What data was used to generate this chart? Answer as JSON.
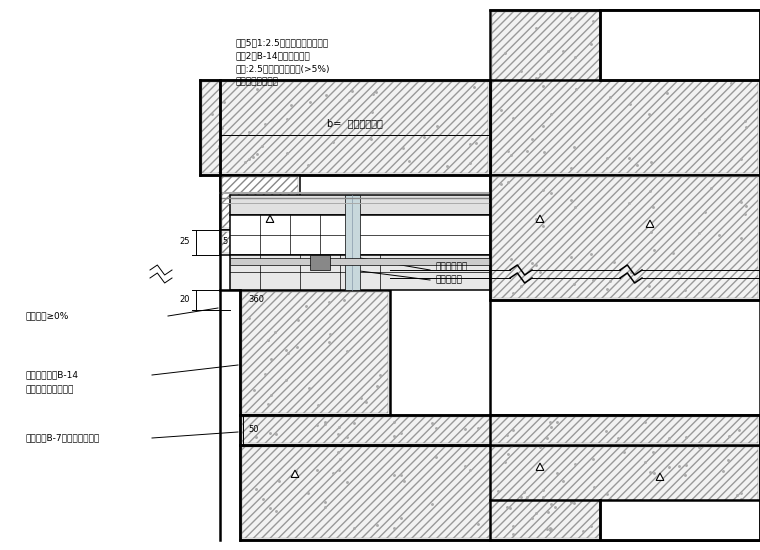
{
  "bg_color": "#ffffff",
  "line_color": "#000000",
  "annotations_top": [
    "抹灰5厚1:2.5钢刷水泥砂浆找平层",
    "涂刷2遍B-14弹性防潮水层",
    "抹灰:2.5水泥砂浆找平层(>5%)",
    "钢筋混凝土结构层"
  ],
  "annotation_b": "b=  （按设计定）",
  "annotation_right1": "断桥铝合金框",
  "annotation_right2": "双层玻璃板",
  "annotation_left1": "窗台坡度≥0%",
  "annotation_left2": "聚束能防水胶B-14",
  "annotation_left3": "弹性水泥砂浆防水层",
  "annotation_left4": "钢筋液态B-7氯丁胶乳水泥浆",
  "dim_25": "25",
  "dim_5": "5",
  "dim_20": "20",
  "dim_360": "360",
  "dim_50": "50"
}
